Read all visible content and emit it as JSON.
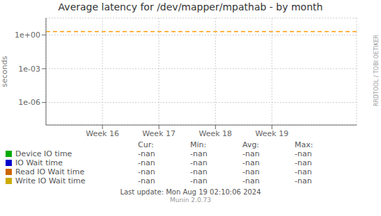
{
  "chart_data": {
    "type": "line",
    "title": "Average latency for /dev/mapper/mpathab - by month",
    "y_label": "seconds",
    "log": "y",
    "grid": true,
    "xlim": [
      15.0,
      20.5
    ],
    "xticks": [
      {
        "value": 16,
        "label": "Week 16"
      },
      {
        "value": 17,
        "label": "Week 17"
      },
      {
        "value": 18,
        "label": "Week 18"
      },
      {
        "value": 19,
        "label": "Week 19"
      }
    ],
    "ylim": [
      1e-08,
      31.622776601683793
    ],
    "yticks": [
      {
        "value": 1e-06,
        "label": "1e-06"
      },
      {
        "value": 0.001,
        "label": "1e-03"
      },
      {
        "value": 1,
        "label": "1e+00"
      }
    ],
    "hlines": [
      {
        "value": 2.0,
        "color": "#ff9900",
        "line_style": "dashed"
      }
    ],
    "stats_header": [
      "Cur:",
      "Min:",
      "Avg:",
      "Max:"
    ],
    "series": [
      {
        "name": "Device IO time",
        "color": "#00aa00",
        "values": [],
        "stats": [
          "-nan",
          "-nan",
          "-nan",
          "-nan"
        ]
      },
      {
        "name": "IO Wait time",
        "color": "#0000cc",
        "values": [],
        "stats": [
          "-nan",
          "-nan",
          "-nan",
          "-nan"
        ]
      },
      {
        "name": "Read IO Wait time",
        "color": "#cc6600",
        "values": [],
        "stats": [
          "-nan",
          "-nan",
          "-nan",
          "-nan"
        ]
      },
      {
        "name": "Write IO Wait time",
        "color": "#ccaa00",
        "values": [],
        "stats": [
          "-nan",
          "-nan",
          "-nan",
          "-nan"
        ]
      }
    ],
    "annotations": [
      "Last update: Mon Aug 19 02:10:06 2024",
      "Munin 2.0.73",
      "RRDTOOL / TOBI OETIKER"
    ]
  }
}
